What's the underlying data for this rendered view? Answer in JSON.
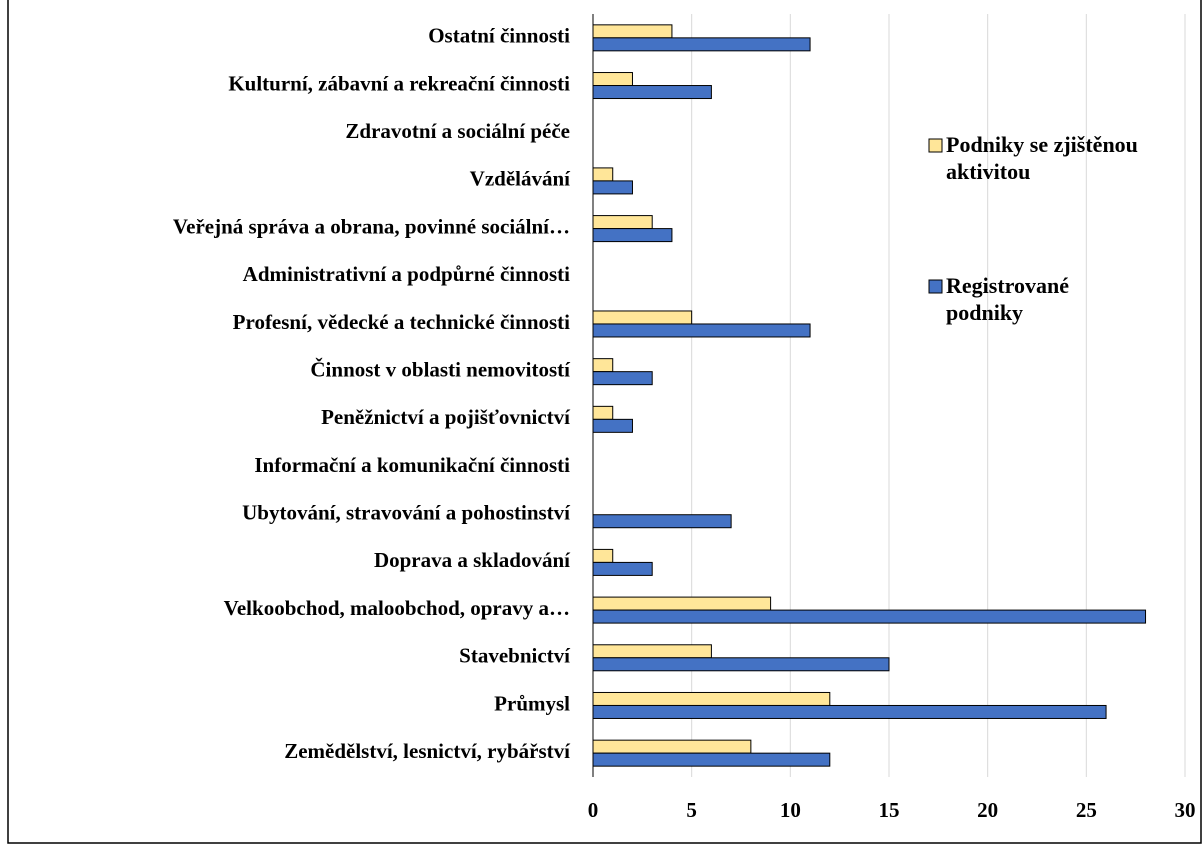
{
  "chart_data": {
    "type": "bar",
    "orientation": "horizontal",
    "categories": [
      "Ostatní činnosti",
      "Kulturní, zábavní a rekreační činnosti",
      "Zdravotní a sociální péče",
      "Vzdělávání",
      "Veřejná správa a obrana, povinné sociální…",
      "Administrativní a podpůrné činnosti",
      "Profesní, vědecké a technické činnosti",
      "Činnost v oblasti nemovitostí",
      "Peněžnictví a pojišťovnictví",
      "Informační a komunikační činnosti",
      "Ubytování, stravování a pohostinství",
      "Doprava a skladování",
      "Velkoobchod, maloobchod, opravy a…",
      "Stavebnictví",
      "Průmysl",
      "Zemědělství, lesnictví, rybářství"
    ],
    "series": [
      {
        "name": "Podniky se zjištěnou aktivitou",
        "color": "#ffe699",
        "values": [
          4,
          2,
          0,
          1,
          3,
          0,
          5,
          1,
          1,
          0,
          0,
          1,
          9,
          6,
          12,
          8
        ]
      },
      {
        "name": "Registrované podniky",
        "color": "#4472c4",
        "values": [
          11,
          6,
          0,
          2,
          4,
          0,
          11,
          3,
          2,
          0,
          7,
          3,
          28,
          15,
          26,
          12
        ]
      }
    ],
    "xlim": [
      0,
      30
    ],
    "xticks": [
      0,
      5,
      10,
      15,
      20,
      25,
      30
    ],
    "grid": true
  }
}
